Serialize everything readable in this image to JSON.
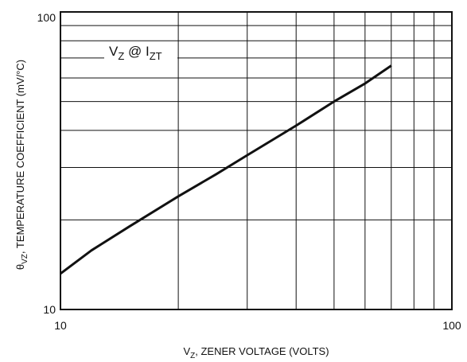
{
  "chart_data": {
    "type": "line",
    "x_scale": "log",
    "y_scale": "log",
    "xlim": [
      10,
      100
    ],
    "ylim": [
      10,
      100
    ],
    "x_tick_labels": [
      "10",
      "100"
    ],
    "y_tick_labels": [
      "10",
      "100"
    ],
    "grid": true,
    "xlabel": {
      "main": "V",
      "sub": "Z",
      "rest": ", ZENER VOLTAGE (VOLTS)"
    },
    "ylabel": {
      "main": "θ",
      "sub": "VZ",
      "rest": ", TEMPERATURE COEFFICIENT (mV/°C)"
    },
    "annotation": {
      "v": "V",
      "vsub": "Z",
      "at": " @ I",
      "isub": "ZT"
    },
    "series": [
      {
        "x": [
          10,
          12,
          15,
          20,
          25,
          30,
          40,
          50,
          60,
          70
        ],
        "y": [
          13.2,
          15.8,
          19.0,
          24.0,
          28.5,
          33.0,
          41.5,
          50.0,
          57.5,
          66.0
        ]
      }
    ],
    "line_color": "#111111"
  }
}
